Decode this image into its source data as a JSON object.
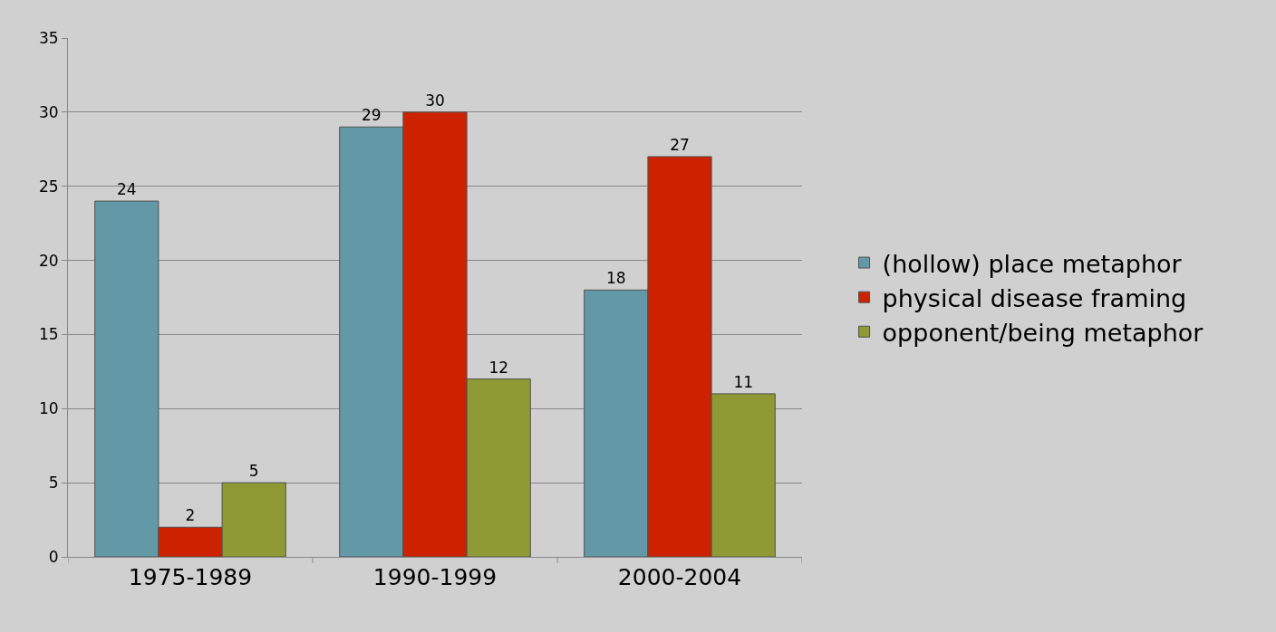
{
  "chart_data": {
    "type": "bar",
    "categories": [
      "1975-1989",
      "1990-1999",
      "2000-2004"
    ],
    "series": [
      {
        "name": "(hollow) place metaphor",
        "color": "#6399a6",
        "values": [
          24,
          29,
          18
        ]
      },
      {
        "name": "physical disease framing",
        "color": "#cc2200",
        "values": [
          2,
          30,
          27
        ]
      },
      {
        "name": "opponent/being metaphor",
        "color": "#8f9a35",
        "values": [
          5,
          12,
          11
        ]
      }
    ],
    "ylim": [
      0,
      35
    ],
    "yticks": [
      0,
      5,
      10,
      15,
      20,
      25,
      30,
      35
    ],
    "grid": "y",
    "legend": "right",
    "data_labels": true
  }
}
